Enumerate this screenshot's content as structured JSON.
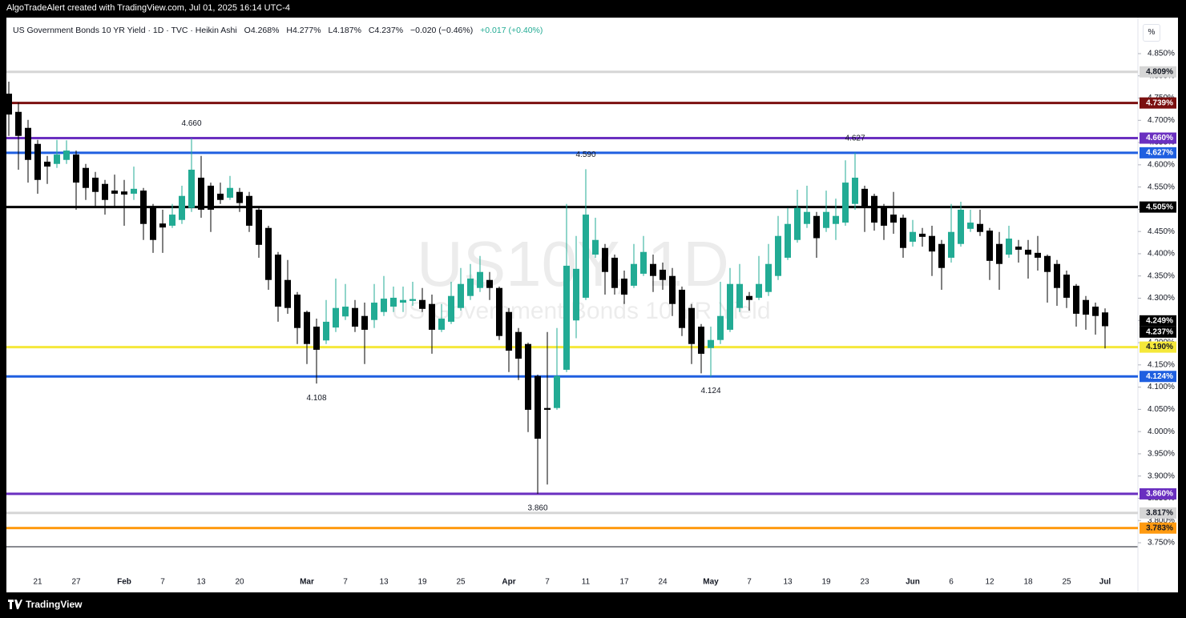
{
  "header": {
    "created": "AlgoTradeAlert created with TradingView.com, Jul 01, 2025 16:14 UTC-4",
    "symbol": "US Government Bonds 10 YR Yield · 1D · TVC · Heikin Ashi",
    "ohlc": [
      "O4.268%",
      "H4.277%",
      "L4.187%",
      "C4.237%"
    ],
    "change": "−0.020 (−0.46%)",
    "change_after": "+0.017 (+0.40%)",
    "scale_button": "%"
  },
  "footer": {
    "brand": "TradingView"
  },
  "chart_data": {
    "type": "candlestick",
    "watermark": "US10Y, 1D",
    "watermark_subtitle": "US Government Bonds 10 YR Yield",
    "up_color": "#22ab94",
    "down_color": "#000000",
    "categories": [
      null,
      null,
      null,
      "21",
      null,
      null,
      null,
      "27",
      null,
      null,
      null,
      null,
      "Feb",
      null,
      null,
      null,
      "7",
      null,
      null,
      null,
      "13",
      null,
      null,
      null,
      "20",
      null,
      null,
      null,
      null,
      null,
      null,
      "Mar",
      null,
      null,
      null,
      "7",
      null,
      null,
      null,
      "13",
      null,
      null,
      null,
      "19",
      null,
      null,
      null,
      "25",
      null,
      null,
      null,
      null,
      "Apr",
      null,
      null,
      null,
      "7",
      null,
      null,
      null,
      "11",
      null,
      null,
      null,
      "17",
      null,
      null,
      null,
      "24",
      null,
      null,
      null,
      null,
      "May",
      null,
      null,
      null,
      "7",
      null,
      null,
      null,
      "13",
      null,
      null,
      null,
      "19",
      null,
      null,
      null,
      "23",
      null,
      null,
      null,
      null,
      "Jun",
      null,
      null,
      null,
      "6",
      null,
      null,
      null,
      "12",
      null,
      null,
      null,
      "18",
      null,
      null,
      null,
      "25",
      null,
      null,
      null,
      "Jul"
    ],
    "open": [
      4.76,
      4.719,
      4.683,
      4.647,
      4.607,
      4.602,
      4.611,
      4.623,
      4.593,
      4.571,
      4.557,
      4.542,
      4.54,
      4.535,
      4.542,
      4.506,
      4.468,
      4.463,
      4.476,
      4.503,
      4.571,
      4.553,
      4.535,
      4.526,
      4.539,
      4.53,
      4.499,
      4.458,
      4.398,
      4.341,
      4.308,
      4.269,
      4.236,
      4.205,
      4.234,
      4.259,
      4.278,
      4.26,
      4.251,
      4.269,
      4.281,
      4.29,
      4.294,
      4.296,
      4.287,
      4.229,
      4.247,
      4.278,
      4.305,
      4.323,
      4.341,
      4.323,
      4.269,
      4.224,
      4.197,
      4.125,
      4.053,
      4.053,
      4.139,
      4.25,
      4.301,
      4.398,
      4.413,
      4.391,
      4.344,
      4.328,
      4.355,
      4.377,
      4.364,
      4.35,
      4.319,
      4.278,
      4.236,
      4.188,
      4.206,
      4.229,
      4.278,
      4.305,
      4.301,
      4.314,
      4.35,
      4.391,
      4.431,
      4.467,
      4.485,
      4.458,
      4.467,
      4.47,
      4.512,
      4.546,
      4.53,
      4.506,
      4.488,
      4.481,
      4.427,
      4.445,
      4.44,
      4.422,
      4.391,
      4.422,
      4.456,
      4.467,
      4.452,
      4.422,
      4.398,
      4.416,
      4.409,
      4.402,
      4.395,
      4.377,
      4.353,
      4.328,
      4.296,
      4.281,
      4.268
    ],
    "high": [
      4.787,
      4.74,
      4.701,
      4.656,
      4.62,
      4.656,
      4.655,
      4.632,
      4.602,
      4.584,
      4.566,
      4.578,
      4.566,
      4.596,
      4.548,
      4.512,
      4.499,
      4.512,
      4.553,
      4.66,
      4.62,
      4.56,
      4.56,
      4.575,
      4.548,
      4.539,
      4.503,
      4.463,
      4.404,
      4.386,
      4.314,
      4.272,
      4.254,
      4.296,
      4.344,
      4.332,
      4.296,
      4.29,
      4.332,
      4.35,
      4.326,
      4.326,
      4.337,
      4.323,
      4.308,
      4.287,
      4.337,
      4.368,
      4.377,
      4.395,
      4.359,
      4.326,
      4.278,
      4.233,
      4.2,
      4.128,
      4.224,
      4.233,
      4.512,
      4.44,
      4.59,
      4.481,
      4.422,
      4.398,
      4.362,
      4.422,
      4.44,
      4.398,
      4.38,
      4.368,
      4.326,
      4.287,
      4.242,
      4.236,
      4.337,
      4.368,
      4.377,
      4.314,
      4.395,
      4.422,
      4.485,
      4.503,
      4.544,
      4.553,
      4.494,
      4.542,
      4.524,
      4.61,
      4.627,
      4.553,
      4.535,
      4.512,
      4.539,
      4.488,
      4.476,
      4.458,
      4.463,
      4.431,
      4.512,
      4.517,
      4.499,
      4.499,
      4.458,
      4.449,
      4.463,
      4.431,
      4.431,
      4.44,
      4.398,
      4.386,
      4.362,
      4.332,
      4.305,
      4.29,
      4.277
    ],
    "low": [
      4.665,
      4.589,
      4.56,
      4.535,
      4.557,
      4.593,
      4.602,
      4.499,
      4.521,
      4.503,
      4.488,
      4.503,
      4.463,
      4.521,
      4.431,
      4.402,
      4.402,
      4.458,
      4.467,
      4.494,
      4.481,
      4.449,
      4.512,
      4.521,
      4.494,
      4.449,
      4.391,
      4.319,
      4.247,
      4.265,
      4.197,
      4.152,
      4.108,
      4.197,
      4.224,
      4.251,
      4.224,
      4.152,
      4.233,
      4.26,
      4.269,
      4.269,
      4.283,
      4.269,
      4.175,
      4.224,
      4.242,
      4.272,
      4.296,
      4.314,
      4.296,
      4.206,
      4.134,
      4.116,
      3.999,
      3.86,
      3.881,
      4.049,
      4.134,
      4.21,
      4.296,
      4.391,
      4.308,
      4.308,
      4.287,
      4.323,
      4.35,
      4.314,
      4.319,
      4.26,
      4.215,
      4.152,
      4.131,
      4.124,
      4.197,
      4.224,
      4.269,
      4.272,
      4.296,
      4.305,
      4.341,
      4.386,
      4.425,
      4.458,
      4.391,
      4.449,
      4.431,
      4.463,
      4.499,
      4.449,
      4.452,
      4.431,
      4.445,
      4.391,
      4.416,
      4.416,
      4.35,
      4.319,
      4.38,
      4.416,
      4.449,
      4.44,
      4.341,
      4.319,
      4.391,
      4.38,
      4.344,
      4.362,
      4.29,
      4.283,
      4.278,
      4.236,
      4.229,
      4.218,
      4.187
    ],
    "close": [
      4.713,
      4.665,
      4.611,
      4.566,
      4.596,
      4.623,
      4.632,
      4.56,
      4.548,
      4.539,
      4.521,
      4.535,
      4.533,
      4.546,
      4.467,
      4.431,
      4.459,
      4.488,
      4.53,
      4.589,
      4.499,
      4.499,
      4.521,
      4.548,
      4.514,
      4.463,
      4.42,
      4.341,
      4.281,
      4.278,
      4.233,
      4.197,
      4.184,
      4.247,
      4.278,
      4.281,
      4.236,
      4.229,
      4.29,
      4.299,
      4.301,
      4.296,
      4.298,
      4.276,
      4.229,
      4.254,
      4.305,
      4.332,
      4.344,
      4.359,
      4.323,
      4.215,
      4.182,
      4.164,
      4.049,
      3.984,
      4.049,
      4.125,
      4.373,
      4.366,
      4.488,
      4.431,
      4.359,
      4.323,
      4.308,
      4.377,
      4.404,
      4.35,
      4.341,
      4.287,
      4.233,
      4.197,
      4.175,
      4.206,
      4.26,
      4.332,
      4.332,
      4.296,
      4.332,
      4.377,
      4.44,
      4.467,
      4.503,
      4.494,
      4.435,
      4.494,
      4.485,
      4.56,
      4.571,
      4.506,
      4.47,
      4.463,
      4.47,
      4.413,
      4.449,
      4.438,
      4.405,
      4.368,
      4.449,
      4.499,
      4.47,
      4.449,
      4.384,
      4.377,
      4.434,
      4.409,
      4.398,
      4.391,
      4.359,
      4.323,
      4.301,
      4.265,
      4.263,
      4.26,
      4.237
    ],
    "ylim": [
      3.741,
      4.931
    ],
    "yticks": [
      {
        "value": 3.75,
        "label": "3.750%"
      },
      {
        "value": 3.8,
        "label": "3.800%"
      },
      {
        "value": 3.85,
        "label": "3.850%"
      },
      {
        "value": 3.9,
        "label": "3.900%"
      },
      {
        "value": 3.95,
        "label": "3.950%"
      },
      {
        "value": 4.0,
        "label": "4.000%"
      },
      {
        "value": 4.05,
        "label": "4.050%"
      },
      {
        "value": 4.1,
        "label": "4.100%"
      },
      {
        "value": 4.15,
        "label": "4.150%"
      },
      {
        "value": 4.2,
        "label": "4.200%"
      },
      {
        "value": 4.25,
        "label": "4.250%"
      },
      {
        "value": 4.3,
        "label": "4.300%"
      },
      {
        "value": 4.35,
        "label": "4.350%"
      },
      {
        "value": 4.4,
        "label": "4.400%"
      },
      {
        "value": 4.45,
        "label": "4.450%"
      },
      {
        "value": 4.5,
        "label": "4.500%"
      },
      {
        "value": 4.55,
        "label": "4.550%"
      },
      {
        "value": 4.6,
        "label": "4.600%"
      },
      {
        "value": 4.65,
        "label": "4.650%"
      },
      {
        "value": 4.7,
        "label": "4.700%"
      },
      {
        "value": 4.75,
        "label": "4.750%"
      },
      {
        "value": 4.8,
        "label": "4.800%"
      },
      {
        "value": 4.85,
        "label": "4.850%"
      }
    ],
    "levels": [
      {
        "value": 4.809,
        "label": "4.809%",
        "color": "#d6d6d6"
      },
      {
        "value": 4.739,
        "label": "4.739%",
        "color": "#7b1010"
      },
      {
        "value": 4.66,
        "label": "4.660%",
        "color": "#6a2fc0"
      },
      {
        "value": 4.627,
        "label": "4.627%",
        "color": "#1f5fe0"
      },
      {
        "value": 4.505,
        "label": "4.505%",
        "color": "#000000"
      },
      {
        "value": 4.19,
        "label": "4.190%",
        "color": "#f5e83a"
      },
      {
        "value": 4.124,
        "label": "4.124%",
        "color": "#1f5fe0"
      },
      {
        "value": 3.86,
        "label": "3.860%",
        "color": "#6a2fc0"
      },
      {
        "value": 3.817,
        "label": "3.817%",
        "color": "#d6d6d6"
      },
      {
        "value": 3.783,
        "label": "3.783%",
        "color": "#ff9a10"
      }
    ],
    "price_labels": [
      {
        "value": 4.249,
        "label": "4.249%"
      },
      {
        "value": 4.237,
        "label": "4.237%"
      }
    ],
    "annotations": [
      {
        "value": 4.66,
        "label": "4.660"
      },
      {
        "value": 4.59,
        "label": "4.590"
      },
      {
        "value": 4.627,
        "label": "4.627"
      },
      {
        "value": 4.108,
        "label": "4.108"
      },
      {
        "value": 4.124,
        "label": "4.124"
      },
      {
        "value": 3.86,
        "label": "3.860"
      }
    ]
  }
}
